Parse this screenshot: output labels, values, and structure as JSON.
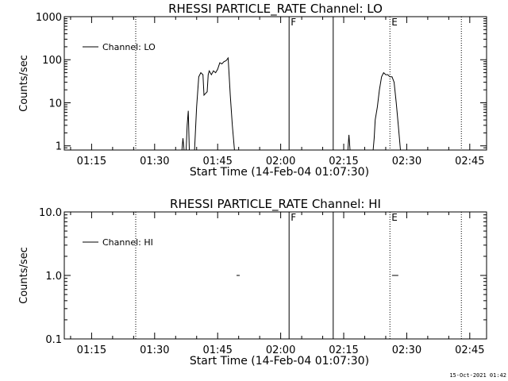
{
  "footer": {
    "timestamp": "15-Oct-2021 01:42"
  },
  "chart_data": [
    {
      "type": "line",
      "title": "RHESSI PARTICLE_RATE Channel: LO",
      "xlabel": "Start Time (14-Feb-04 01:07:30)",
      "ylabel": "Counts/sec",
      "yscale": "log",
      "ylim": [
        0.8,
        1000
      ],
      "x_range": [
        "01:08:30",
        "02:49:00"
      ],
      "x_ticks": [
        "01:15",
        "01:30",
        "01:45",
        "02:00",
        "02:15",
        "02:30",
        "02:45"
      ],
      "y_ticks": [
        "1",
        "10",
        "100",
        "1000"
      ],
      "legend": {
        "position": "top-left",
        "entries": [
          "Channel: LO"
        ]
      },
      "markers": [
        {
          "time": "01:25:30",
          "style": "dotted",
          "label": ""
        },
        {
          "time": "02:02:00",
          "style": "solid",
          "label": "F"
        },
        {
          "time": "02:12:30",
          "style": "solid",
          "label": ""
        },
        {
          "time": "02:26:00",
          "style": "dotted",
          "label": "E"
        },
        {
          "time": "02:43:00",
          "style": "dotted",
          "label": ""
        }
      ],
      "series": [
        {
          "name": "Channel: LO",
          "segments": [
            [
              [
                "01:36:30",
                0.8
              ],
              [
                "01:36:45",
                1.5
              ],
              [
                "01:37:00",
                0.8
              ]
            ],
            [
              [
                "01:37:30",
                0.8
              ],
              [
                "01:37:45",
                3
              ],
              [
                "01:38:00",
                6.5
              ],
              [
                "01:38:15",
                0.8
              ]
            ],
            [
              [
                "01:39:30",
                0.8
              ],
              [
                "01:40:00",
                8
              ],
              [
                "01:40:30",
                40
              ],
              [
                "01:41:00",
                50
              ],
              [
                "01:41:30",
                45
              ],
              [
                "01:41:45",
                15
              ],
              [
                "01:42:00",
                16
              ],
              [
                "01:42:30",
                18
              ],
              [
                "01:42:45",
                45
              ],
              [
                "01:43:00",
                55
              ],
              [
                "01:43:30",
                45
              ],
              [
                "01:44:00",
                55
              ],
              [
                "01:44:30",
                50
              ],
              [
                "01:45:00",
                60
              ],
              [
                "01:45:30",
                85
              ],
              [
                "01:46:00",
                80
              ],
              [
                "01:46:30",
                90
              ],
              [
                "01:47:00",
                95
              ],
              [
                "01:47:30",
                110
              ],
              [
                "01:47:45",
                40
              ],
              [
                "01:48:00",
                15
              ],
              [
                "01:48:30",
                3
              ],
              [
                "01:49:00",
                0.8
              ]
            ],
            [
              [
                "02:16:00",
                0.8
              ],
              [
                "02:16:15",
                1.8
              ],
              [
                "02:16:30",
                0.8
              ]
            ],
            [
              [
                "02:22:00",
                0.8
              ],
              [
                "02:22:15",
                1.5
              ],
              [
                "02:22:30",
                4
              ],
              [
                "02:23:00",
                8
              ],
              [
                "02:23:30",
                20
              ],
              [
                "02:24:00",
                40
              ],
              [
                "02:24:30",
                50
              ],
              [
                "02:25:00",
                45
              ],
              [
                "02:25:30",
                45
              ],
              [
                "02:26:00",
                40
              ],
              [
                "02:26:30",
                40
              ],
              [
                "02:27:00",
                30
              ],
              [
                "02:27:30",
                10
              ],
              [
                "02:28:00",
                3
              ],
              [
                "02:28:30",
                0.8
              ]
            ]
          ]
        }
      ]
    },
    {
      "type": "line",
      "title": "RHESSI PARTICLE_RATE Channel: HI",
      "xlabel": "Start Time (14-Feb-04 01:07:30)",
      "ylabel": "Counts/sec",
      "yscale": "log",
      "ylim": [
        0.1,
        10
      ],
      "x_range": [
        "01:08:30",
        "02:49:00"
      ],
      "x_ticks": [
        "01:15",
        "01:30",
        "01:45",
        "02:00",
        "02:15",
        "02:30",
        "02:45"
      ],
      "y_ticks": [
        "0.1",
        "1.0",
        "10.0"
      ],
      "legend": {
        "position": "top-left",
        "entries": [
          "Channel: HI"
        ]
      },
      "markers": [
        {
          "time": "01:25:30",
          "style": "dotted",
          "label": ""
        },
        {
          "time": "02:02:00",
          "style": "solid",
          "label": "F"
        },
        {
          "time": "02:12:30",
          "style": "solid",
          "label": ""
        },
        {
          "time": "02:26:00",
          "style": "dotted",
          "label": "E"
        },
        {
          "time": "02:43:00",
          "style": "dotted",
          "label": ""
        }
      ],
      "series": [
        {
          "name": "Channel: HI",
          "segments": [
            [
              [
                "01:49:30",
                1.0
              ],
              [
                "01:50:15",
                1.0
              ]
            ],
            [
              [
                "02:26:30",
                1.0
              ],
              [
                "02:28:00",
                1.0
              ]
            ]
          ]
        }
      ]
    }
  ]
}
